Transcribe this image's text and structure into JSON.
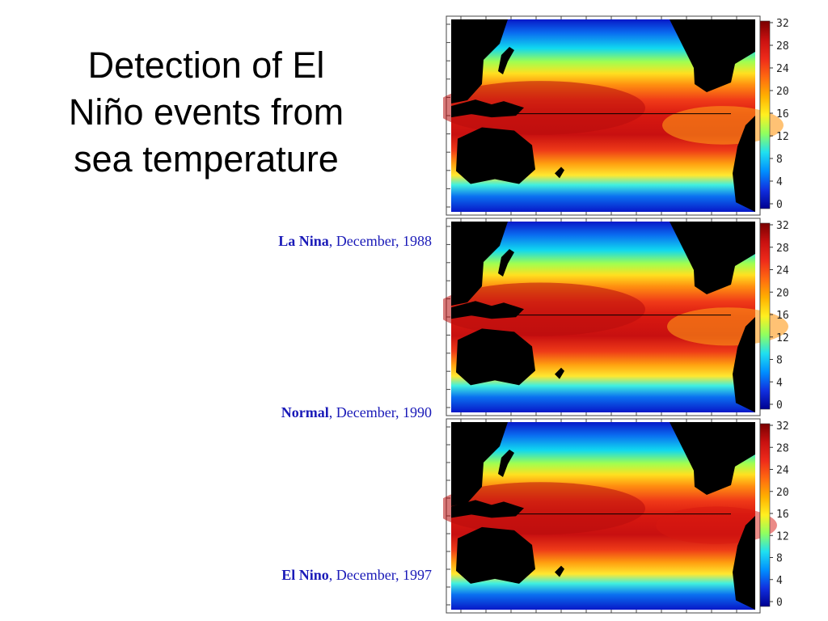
{
  "slide": {
    "title_lines": [
      "Detection of El",
      "Niño events from",
      "sea temperature"
    ]
  },
  "panels": [
    {
      "event": "La Nina",
      "date": ", December, 1988",
      "colorbar_ticks": [
        "32",
        "28",
        "24",
        "20",
        "16",
        "12",
        "8",
        "4",
        "0"
      ]
    },
    {
      "event": "Normal",
      "date": ", December, 1990",
      "colorbar_ticks": [
        "32",
        "28",
        "24",
        "20",
        "16",
        "12",
        "8",
        "4",
        "0"
      ]
    },
    {
      "event": "El Nino",
      "date": ", December, 1997",
      "colorbar_ticks": [
        "32",
        "28",
        "24",
        "20",
        "16",
        "12",
        "8",
        "4",
        "0"
      ]
    }
  ],
  "colors": {
    "caption_text": "#1a1ab8",
    "land": "#000000",
    "colorbar_scale": [
      "#7a0000",
      "#c81010",
      "#ee2a1a",
      "#ff6a10",
      "#ffb000",
      "#fff020",
      "#90ff60",
      "#20e0f0",
      "#0090ff",
      "#1030e0",
      "#000090"
    ]
  }
}
